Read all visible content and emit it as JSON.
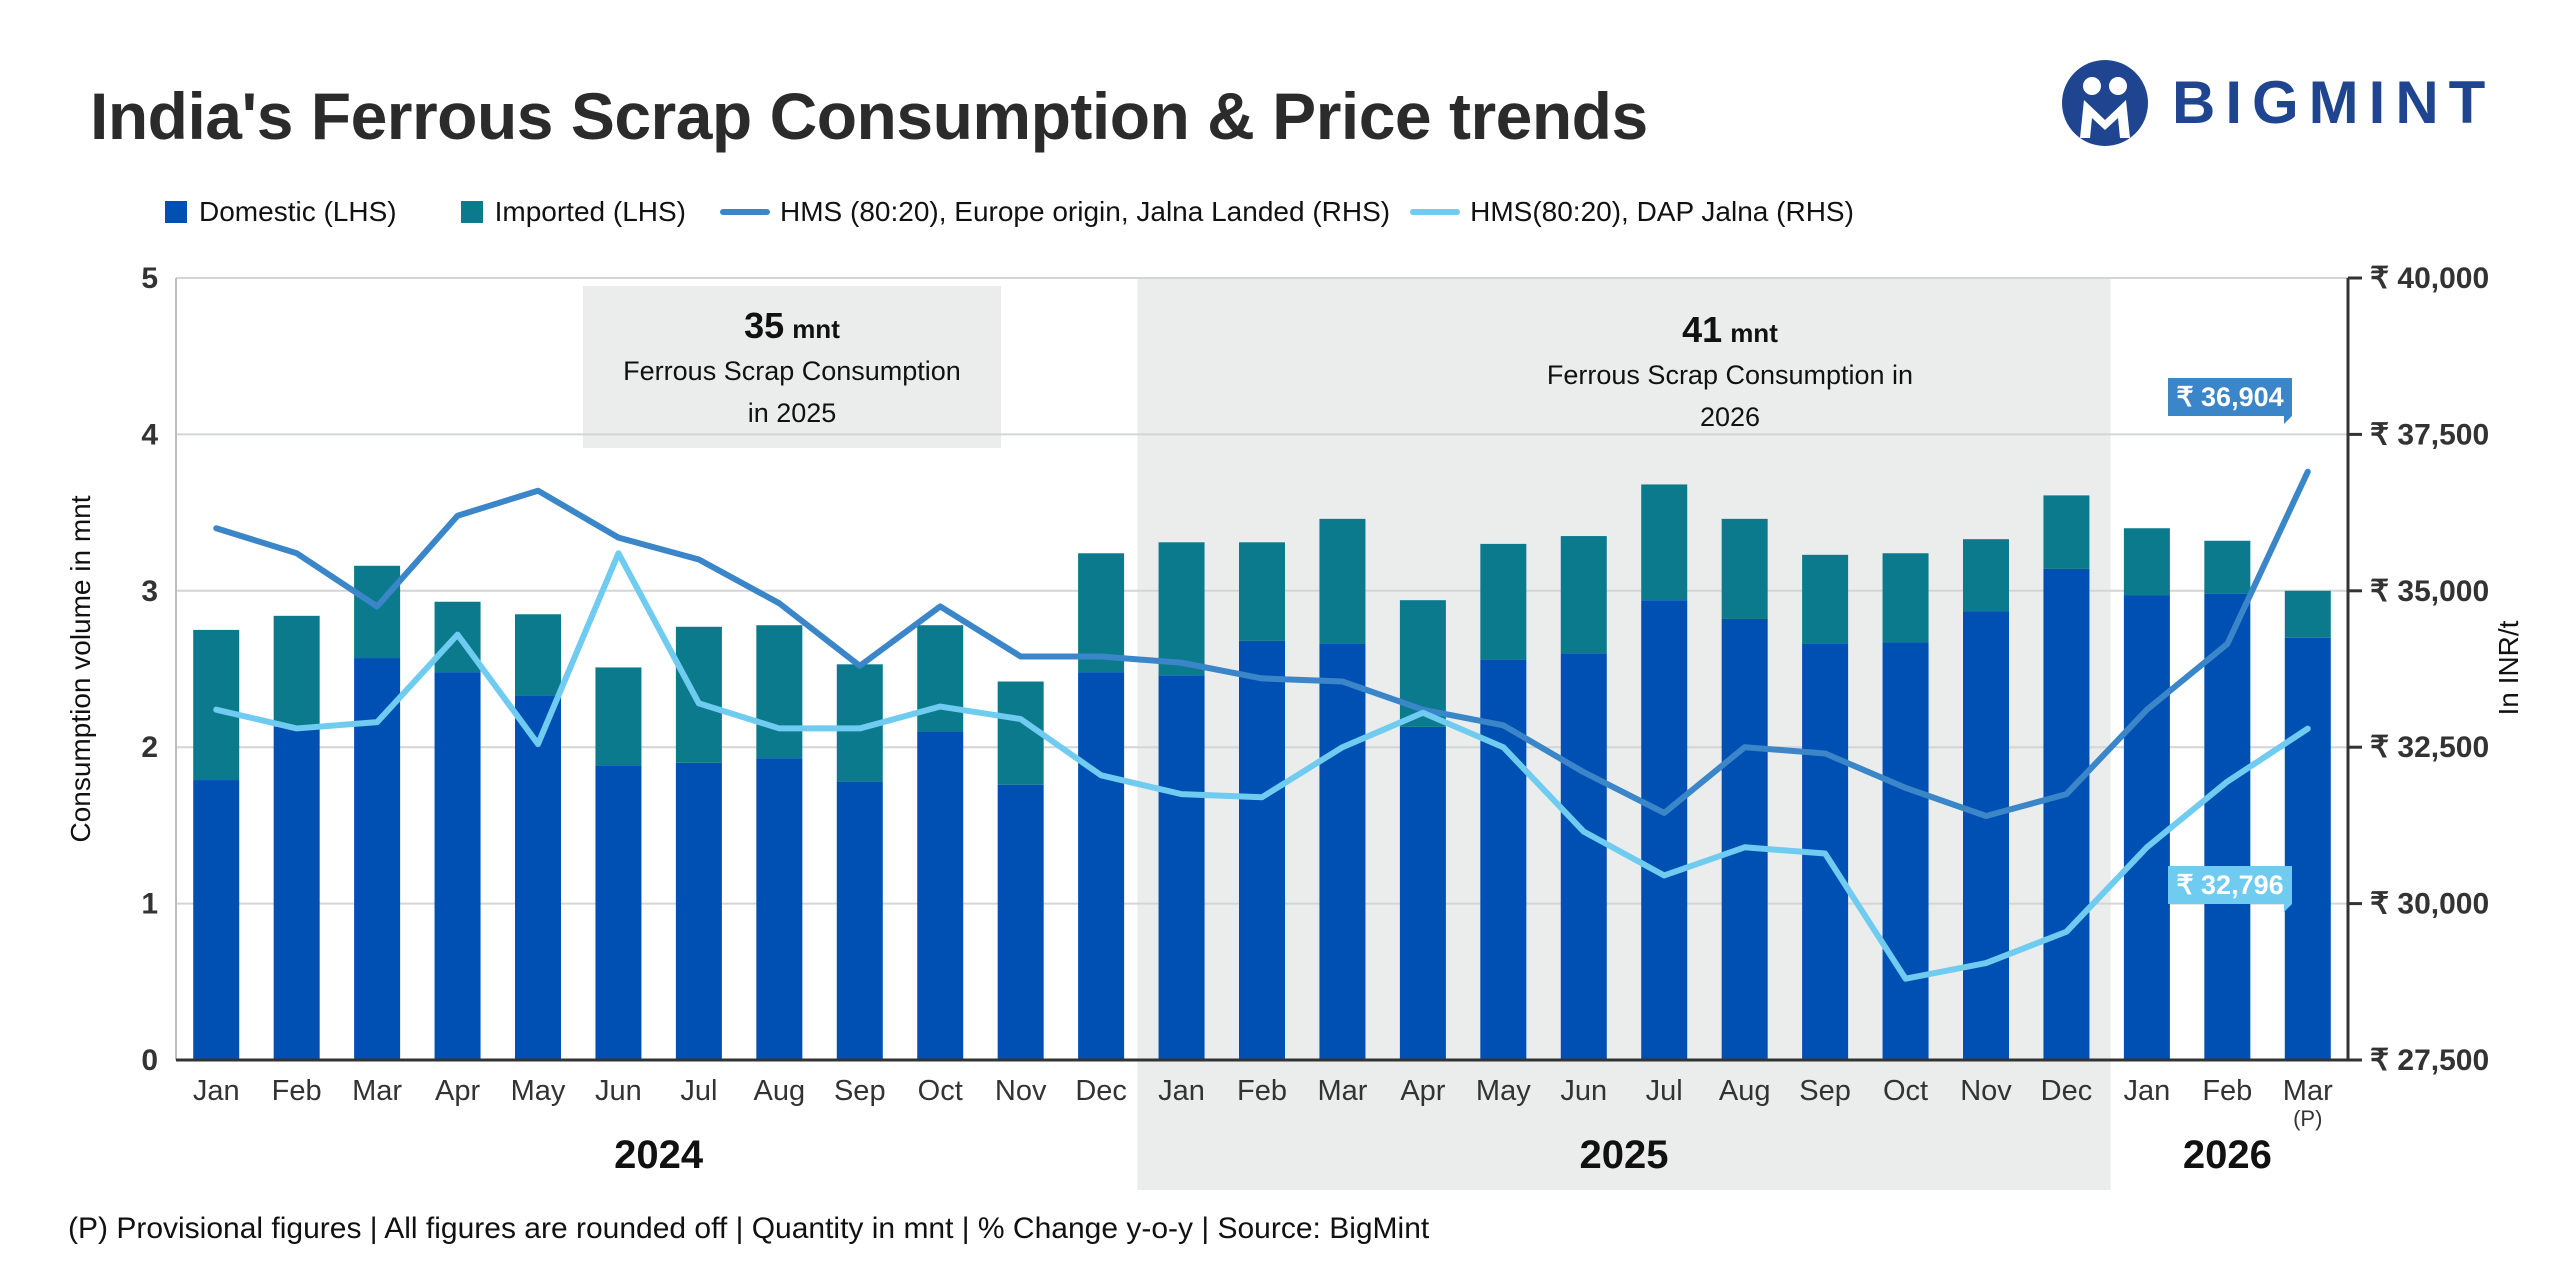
{
  "header": {
    "title": "India's Ferrous Scrap Consumption & Price trends"
  },
  "logo": {
    "text": "BIGMINT"
  },
  "legend": [
    {
      "label": "Domestic (LHS)",
      "kind": "box",
      "color": "#0050b3"
    },
    {
      "label": "Imported (LHS)",
      "kind": "box",
      "color": "#0a7a8c"
    },
    {
      "label": "HMS (80:20), Europe origin, Jalna Landed (RHS)",
      "kind": "line",
      "color": "#3a86c8"
    },
    {
      "label": "HMS(80:20), DAP Jalna (RHS)",
      "kind": "line",
      "color": "#6fcbef"
    }
  ],
  "footer": {
    "note": "(P) Provisional figures | All figures are rounded off | Quantity in mnt | % Change y-o-y | Source: BigMint"
  },
  "chart_data": {
    "type": "bar",
    "ylabel": "Consumption volume in mnt",
    "y2label": "In INR/t",
    "ylim": [
      0,
      5
    ],
    "y2lim": [
      27500,
      40000
    ],
    "yticks": [
      "0",
      "1",
      "2",
      "3",
      "4",
      "5"
    ],
    "y2ticks": [
      "₹ 27,500",
      "₹ 30,000",
      "₹ 32,500",
      "₹ 35,000",
      "₹ 37,500",
      "₹ 40,000"
    ],
    "grid": true,
    "legend_position": "top-left",
    "categories": [
      "Jan",
      "Feb",
      "Mar",
      "Apr",
      "May",
      "Jun",
      "Jul",
      "Aug",
      "Sep",
      "Oct",
      "Nov",
      "Dec",
      "Jan",
      "Feb",
      "Mar",
      "Apr",
      "May",
      "Jun",
      "Jul",
      "Aug",
      "Sep",
      "Oct",
      "Nov",
      "Dec",
      "Jan",
      "Feb",
      "Mar"
    ],
    "provisional_marker": "(P)",
    "years": [
      "2024",
      "2025",
      "2026"
    ],
    "series": [
      {
        "name": "Domestic (LHS)",
        "type": "bar",
        "color": "#0050b3",
        "values": [
          1.79,
          2.13,
          2.57,
          2.48,
          2.33,
          1.88,
          1.9,
          1.93,
          1.78,
          2.1,
          1.76,
          2.48,
          2.46,
          2.68,
          2.66,
          2.13,
          2.56,
          2.6,
          2.94,
          2.82,
          2.66,
          2.67,
          2.87,
          3.14,
          2.97,
          2.98,
          2.7
        ]
      },
      {
        "name": "Imported (LHS)",
        "type": "bar",
        "color": "#0a7a8c",
        "values": [
          0.96,
          0.71,
          0.59,
          0.45,
          0.52,
          0.63,
          0.87,
          0.85,
          0.75,
          0.68,
          0.66,
          0.76,
          0.85,
          0.63,
          0.8,
          0.81,
          0.74,
          0.75,
          0.74,
          0.64,
          0.57,
          0.57,
          0.46,
          0.47,
          0.43,
          0.34,
          0.3
        ]
      },
      {
        "name": "HMS (80:20), Europe origin, Jalna Landed (RHS)",
        "type": "line",
        "axis": "right",
        "color": "#3a86c8",
        "values": [
          36000,
          35600,
          34750,
          36200,
          36600,
          35850,
          35500,
          34800,
          33800,
          34750,
          33950,
          33950,
          33850,
          33600,
          33550,
          33100,
          32850,
          32100,
          31450,
          32500,
          32400,
          31850,
          31400,
          31750,
          33100,
          34150,
          36904
        ]
      },
      {
        "name": "HMS(80:20), DAP Jalna (RHS)",
        "type": "line",
        "axis": "right",
        "color": "#6fcbef",
        "values": [
          33100,
          32800,
          32900,
          34300,
          32550,
          35600,
          33200,
          32800,
          32800,
          33150,
          32950,
          32050,
          31750,
          31700,
          32500,
          33050,
          32500,
          31150,
          30450,
          30900,
          30800,
          28800,
          29050,
          29550,
          30900,
          31950,
          32796
        ]
      }
    ],
    "callouts": [
      {
        "value": "₹ 36,904",
        "series": "HMS (80:20), Europe origin, Jalna Landed (RHS)"
      },
      {
        "value": "₹ 32,796",
        "series": "HMS(80:20), DAP Jalna (RHS)"
      }
    ],
    "annotations": [
      {
        "value": "35",
        "unit": "mnt",
        "line1": "Ferrous Scrap Consumption",
        "line2": "in  2025"
      },
      {
        "value": "41",
        "unit": "mnt",
        "line1": "Ferrous Scrap Consumption in",
        "line2": "2026"
      }
    ]
  }
}
